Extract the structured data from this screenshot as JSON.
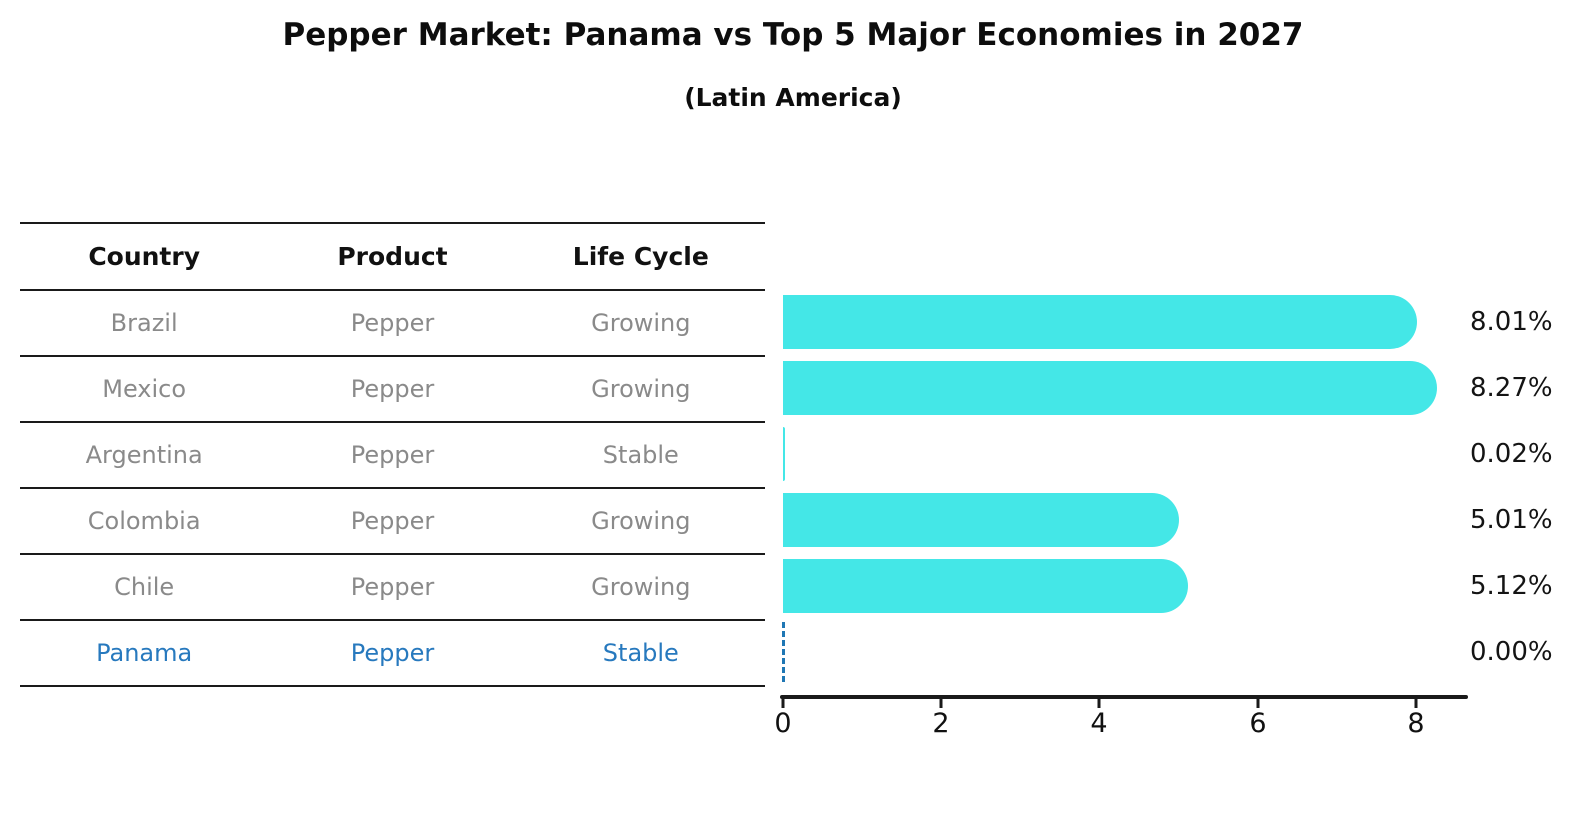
{
  "title": "Pepper Market: Panama vs Top 5 Major Economies in 2027",
  "subtitle": "(Latin America)",
  "table": {
    "headers": [
      "Country",
      "Product",
      "Life Cycle"
    ],
    "rows": [
      {
        "country": "Brazil",
        "product": "Pepper",
        "life_cycle": "Growing",
        "highlight": false
      },
      {
        "country": "Mexico",
        "product": "Pepper",
        "life_cycle": "Growing",
        "highlight": false
      },
      {
        "country": "Argentina",
        "product": "Pepper",
        "life_cycle": "Stable",
        "highlight": false
      },
      {
        "country": "Colombia",
        "product": "Pepper",
        "life_cycle": "Growing",
        "highlight": false
      },
      {
        "country": "Chile",
        "product": "Pepper",
        "life_cycle": "Growing",
        "highlight": false
      },
      {
        "country": "Panama",
        "product": "Pepper",
        "life_cycle": "Stable",
        "highlight": true
      }
    ]
  },
  "chart_data": {
    "type": "bar",
    "orientation": "horizontal",
    "title": "Pepper Market: Panama vs Top 5 Major Economies in 2027",
    "subtitle": "(Latin America)",
    "categories": [
      "Brazil",
      "Mexico",
      "Argentina",
      "Colombia",
      "Chile",
      "Panama"
    ],
    "values": [
      8.01,
      8.27,
      0.02,
      5.01,
      5.12,
      0.0
    ],
    "value_labels": [
      "8.01%",
      "8.27%",
      "0.02%",
      "5.01%",
      "5.12%",
      "0.00%"
    ],
    "x_ticks": [
      0,
      2,
      4,
      6,
      8
    ],
    "xlim": [
      0,
      8.62
    ],
    "grid": false,
    "legend": false,
    "bar_color": "#44e7e7",
    "highlight_marker_color": "#1f77b4",
    "highlight_index": 5
  },
  "colors": {
    "bar": "#44e7e7",
    "highlight_text": "#2779be",
    "highlight_marker": "#1f77b4",
    "axis": "#1a1a1a",
    "cell_text": "#8a8a8a",
    "header_text": "#111111"
  }
}
